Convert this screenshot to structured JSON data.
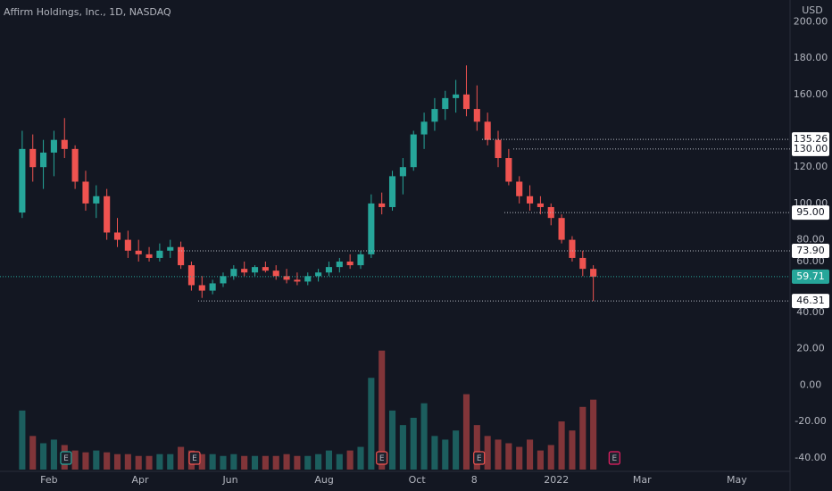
{
  "chart_data": {
    "type": "candlestick",
    "title": "Affirm Holdings, Inc., 1D, NASDAQ",
    "currency": "USD",
    "open": [
      95,
      130,
      120,
      128,
      135,
      130,
      112,
      100,
      104,
      84,
      80,
      74,
      72,
      70,
      74,
      76,
      66,
      55,
      52,
      56,
      60,
      64,
      62,
      65,
      63,
      60,
      58,
      57,
      60,
      62,
      65,
      68,
      66,
      72,
      100,
      98,
      115,
      120,
      138,
      145,
      152,
      158,
      160,
      152,
      145,
      135,
      125,
      112,
      104,
      100,
      98,
      92,
      80,
      70,
      64
    ],
    "high": [
      140,
      138,
      135,
      140,
      147,
      132,
      118,
      110,
      108,
      92,
      85,
      80,
      76,
      78,
      80,
      79,
      68,
      60,
      58,
      62,
      66,
      68,
      66,
      68,
      66,
      64,
      62,
      62,
      64,
      68,
      70,
      72,
      74,
      105,
      106,
      118,
      125,
      140,
      150,
      158,
      162,
      168,
      176,
      165,
      150,
      140,
      130,
      115,
      110,
      104,
      100,
      94,
      82,
      74,
      66
    ],
    "low": [
      92,
      112,
      108,
      115,
      125,
      108,
      96,
      92,
      80,
      76,
      70,
      68,
      68,
      68,
      70,
      64,
      52,
      48,
      50,
      54,
      58,
      60,
      60,
      62,
      58,
      56,
      55,
      55,
      57,
      60,
      62,
      64,
      64,
      70,
      94,
      96,
      105,
      118,
      130,
      140,
      146,
      150,
      148,
      140,
      132,
      120,
      110,
      100,
      96,
      94,
      88,
      78,
      68,
      60,
      46.31
    ],
    "close": [
      130,
      120,
      128,
      135,
      130,
      112,
      100,
      104,
      84,
      80,
      74,
      72,
      70,
      74,
      76,
      66,
      55,
      52,
      56,
      60,
      64,
      62,
      65,
      63,
      60,
      58,
      57,
      60,
      62,
      65,
      68,
      66,
      72,
      100,
      98,
      115,
      120,
      138,
      145,
      152,
      158,
      160,
      152,
      145,
      135,
      125,
      112,
      104,
      100,
      98,
      92,
      80,
      70,
      64,
      59.71
    ],
    "volume": [
      -14,
      -28,
      -32,
      -30,
      -33,
      -36,
      -37,
      -36,
      -37,
      -38,
      -38,
      -39,
      -39,
      -38,
      -38,
      -34,
      -36,
      -38,
      -38,
      -39,
      -38,
      -39,
      -39,
      -39,
      -39,
      -38,
      -39,
      -39,
      -38,
      -36,
      -38,
      -36,
      -34,
      4,
      19,
      -14,
      -22,
      -18,
      -10,
      -28,
      -30,
      -25,
      -5,
      -22,
      -28,
      -30,
      -32,
      -34,
      -30,
      -36,
      -33,
      -20,
      -25,
      -12,
      -8
    ],
    "up_color": "#26a69a",
    "down_color": "#ef5350",
    "xlim": [
      -2.1,
      72.6
    ],
    "xticks": [
      {
        "value": 2.53,
        "label": "Feb"
      },
      {
        "value": 11.15,
        "label": "Apr"
      },
      {
        "value": 19.68,
        "label": "Jun"
      },
      {
        "value": 28.55,
        "label": "Aug"
      },
      {
        "value": 37.33,
        "label": "Oct"
      },
      {
        "value": 42.74,
        "label": "8"
      },
      {
        "value": 50.51,
        "label": "2022"
      },
      {
        "value": 58.61,
        "label": "Mar"
      },
      {
        "value": 67.57,
        "label": "May"
      }
    ],
    "ylim": [
      -46.5,
      212
    ],
    "yticks": [
      {
        "value": 200,
        "label": "200.00"
      },
      {
        "value": 180,
        "label": "180.00"
      },
      {
        "value": 160,
        "label": "160.00"
      },
      {
        "value": 120,
        "label": "120.00"
      },
      {
        "value": 100,
        "label": "100.00"
      },
      {
        "value": 80,
        "label": "80.00"
      },
      {
        "value": 60,
        "label": "60.00"
      },
      {
        "value": 40,
        "label": "40.00"
      },
      {
        "value": 20,
        "label": "20.00"
      },
      {
        "value": 0,
        "label": "0.00"
      },
      {
        "value": -20,
        "label": "-20.00"
      },
      {
        "value": -40,
        "label": "-40.00"
      }
    ],
    "levels": [
      135.26,
      {
        "value": 130,
        "label": "130.00"
      },
      {
        "value": 95,
        "label": "95.00"
      },
      {
        "value": 73.9,
        "label": "73.90"
      },
      46.31
    ],
    "events": [
      {
        "x": 4.14,
        "label": "E",
        "color": "#26a69a"
      },
      {
        "x": 16.3,
        "label": "E",
        "color": "#ef5350"
      },
      {
        "x": 34.0,
        "label": "E",
        "color": "#ef5350"
      },
      {
        "x": 43.2,
        "label": "E",
        "color": "#ef5350"
      },
      {
        "x": 56.0,
        "label": "E",
        "color": "#e91e63"
      }
    ]
  }
}
